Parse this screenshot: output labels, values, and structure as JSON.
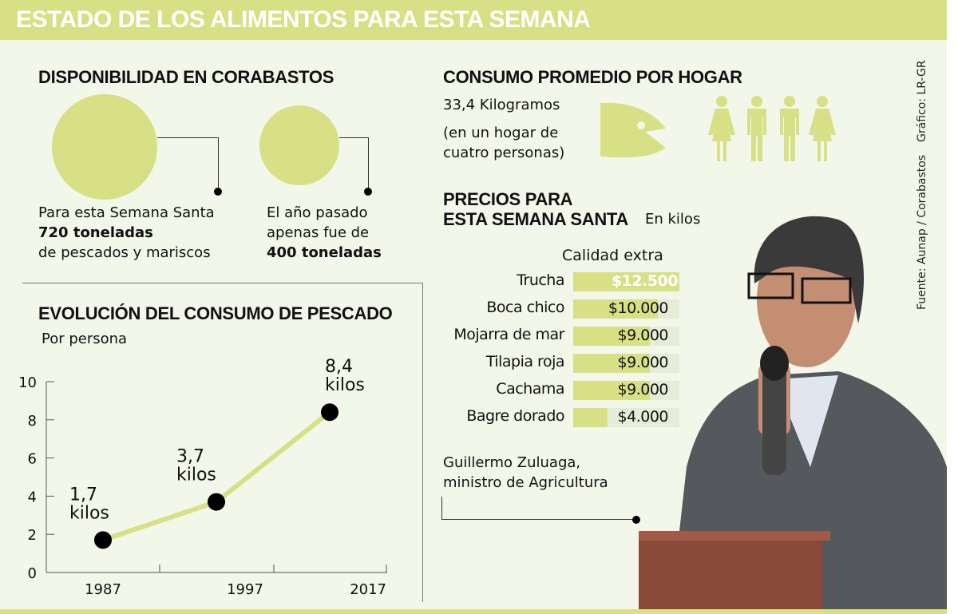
{
  "title": "ESTADO DE LOS ALIMENTOS PARA ESTA SEMANA",
  "disponibilidad": {
    "heading": "DISPONIBILIDAD EN CORABASTOS",
    "current": {
      "line1": "Para esta Semana Santa",
      "line2": "720 toneladas",
      "line3": "de pescados y mariscos",
      "tonnes": 720
    },
    "previous": {
      "line1": "El año pasado",
      "line2": "apenas fue de",
      "line3": "400 toneladas",
      "tonnes": 400
    }
  },
  "consumo": {
    "heading": "CONSUMO PROMEDIO POR HOGAR",
    "amount": "33,4 Kilogramos",
    "note_line1": "(en un hogar de",
    "note_line2": "cuatro personas)",
    "icons": [
      "fish-icon",
      "woman-icon",
      "man-icon",
      "man-icon",
      "woman-icon"
    ]
  },
  "precios": {
    "heading_line1": "PRECIOS PARA",
    "heading_line2": "ESTA SEMANA SANTA",
    "unit": "En kilos",
    "column": "Calidad extra"
  },
  "person": {
    "name": "Guillermo Zuluaga,",
    "role": "ministro de Agricultura"
  },
  "credits": {
    "graphic": "Gráfico: LR-GR",
    "source": "Fuente: Aunap / Corabastos"
  },
  "colors": {
    "accent": "#d7e085",
    "background": "#f2f7ea",
    "track": "#e6ecd8",
    "text": "#111111"
  },
  "chart_data": [
    {
      "type": "line",
      "title": "EVOLUCIÓN DEL CONSUMO DE PESCADO",
      "subtitle": "Por persona",
      "xlabel": "",
      "ylabel": "",
      "x_tick_labels": [
        "1987",
        "1997",
        "2017"
      ],
      "y_ticks": [
        "0",
        "2",
        "4",
        "6",
        "8",
        "10"
      ],
      "ylim": [
        0,
        10
      ],
      "series": [
        {
          "values": [
            1.7,
            3.7,
            8.4
          ]
        }
      ],
      "data_labels": [
        {
          "value": "1,7",
          "unit": "kilos"
        },
        {
          "value": "3,7",
          "unit": "kilos"
        },
        {
          "value": "8,4",
          "unit": "kilos"
        }
      ],
      "grid": false
    },
    {
      "type": "bar",
      "orientation": "horizontal",
      "title": "Calidad extra",
      "categories": [
        "Trucha",
        "Boca chico",
        "Mojarra de mar",
        "Tilapia roja",
        "Cachama",
        "Bagre dorado"
      ],
      "values": [
        12500,
        10000,
        9000,
        9000,
        9000,
        4000
      ],
      "value_labels": [
        "$12.500",
        "$10.000",
        "$9.000",
        "$9.000",
        "$9.000",
        "$4.000"
      ]
    }
  ]
}
